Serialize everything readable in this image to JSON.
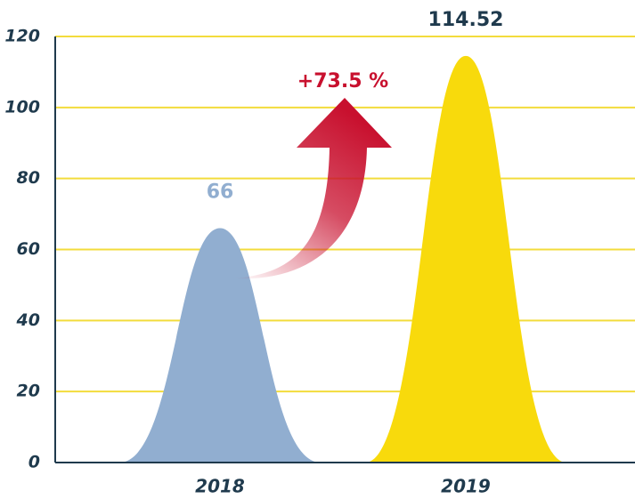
{
  "chart_data": {
    "type": "bar",
    "categories": [
      "2018",
      "2019"
    ],
    "values": [
      66,
      114.52
    ],
    "colors": [
      "#91aed0",
      "#f8da0c"
    ],
    "label_colors": [
      "#91aed0",
      "#1f3a4d"
    ],
    "annotation": "+73.5 %",
    "ylim": [
      0,
      120
    ],
    "yticks": [
      0,
      20,
      40,
      60,
      80,
      100,
      120
    ],
    "grid": true
  }
}
